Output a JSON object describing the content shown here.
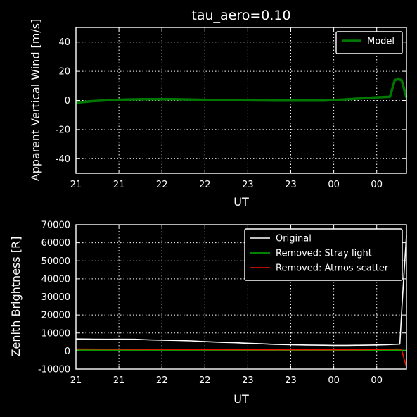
{
  "chart_data": [
    {
      "type": "line",
      "title": "tau_aero=0.10",
      "xlabel": "UT",
      "ylabel": "Apparent Vertical Wind [m/s]",
      "ylim": [
        -50,
        50
      ],
      "yticks": [
        -40,
        -20,
        0,
        20,
        40
      ],
      "xlim": [
        0,
        100
      ],
      "xtick_positions": [
        0,
        13,
        26,
        39,
        52,
        65,
        78,
        91
      ],
      "xtick_labels": [
        "21",
        "21",
        "22",
        "22",
        "23",
        "23",
        "00",
        "00"
      ],
      "grid": true,
      "legend_position": "top-right",
      "series": [
        {
          "name": "Model",
          "color": "#007700",
          "x": [
            0,
            5,
            10,
            15,
            20,
            25,
            30,
            35,
            40,
            45,
            50,
            55,
            60,
            65,
            70,
            75,
            80,
            85,
            90,
            95,
            96.5,
            97.5,
            98.5,
            100
          ],
          "y": [
            -1.5,
            -0.5,
            0.2,
            0.6,
            0.8,
            0.8,
            0.8,
            0.6,
            0.4,
            0.2,
            0.1,
            0,
            -0.1,
            -0.1,
            -0.1,
            -0.1,
            0.5,
            1.2,
            2,
            2.5,
            14,
            14.5,
            14,
            2
          ]
        }
      ]
    },
    {
      "type": "line",
      "title": "",
      "xlabel": "UT",
      "ylabel": "Zenith Brightness [R]",
      "ylim": [
        -10000,
        70000
      ],
      "yticks": [
        -10000,
        0,
        10000,
        20000,
        30000,
        40000,
        50000,
        60000,
        70000
      ],
      "xlim": [
        0,
        100
      ],
      "xtick_positions": [
        0,
        13,
        26,
        39,
        52,
        65,
        78,
        91
      ],
      "xtick_labels": [
        "21",
        "21",
        "22",
        "22",
        "23",
        "23",
        "00",
        "00"
      ],
      "grid": true,
      "legend_position": "top-right",
      "series": [
        {
          "name": "Original",
          "color": "#ffffff",
          "x": [
            0,
            5,
            10,
            13,
            18,
            22,
            26,
            30,
            35,
            39,
            44,
            48,
            52,
            56,
            60,
            65,
            70,
            75,
            78,
            82,
            86,
            90,
            94,
            98,
            98.8,
            100
          ],
          "y": [
            6700,
            6600,
            6500,
            6600,
            6500,
            6200,
            6000,
            5900,
            5600,
            5200,
            4800,
            4600,
            4300,
            4000,
            3700,
            3500,
            3300,
            3200,
            3100,
            3100,
            3200,
            3300,
            3500,
            3800,
            30000,
            64000
          ]
        },
        {
          "name": "Removed: Stray light",
          "color": "#00aa00",
          "x": [
            0,
            20,
            40,
            60,
            80,
            97,
            100
          ],
          "y": [
            500,
            500,
            500,
            400,
            400,
            500,
            300
          ]
        },
        {
          "name": "Removed: Atmos scatter",
          "color": "#ee1100",
          "x": [
            0,
            20,
            40,
            60,
            80,
            95,
            97,
            98.5,
            100
          ],
          "y": [
            1100,
            900,
            800,
            700,
            700,
            900,
            1100,
            900,
            -9000
          ]
        }
      ]
    }
  ]
}
